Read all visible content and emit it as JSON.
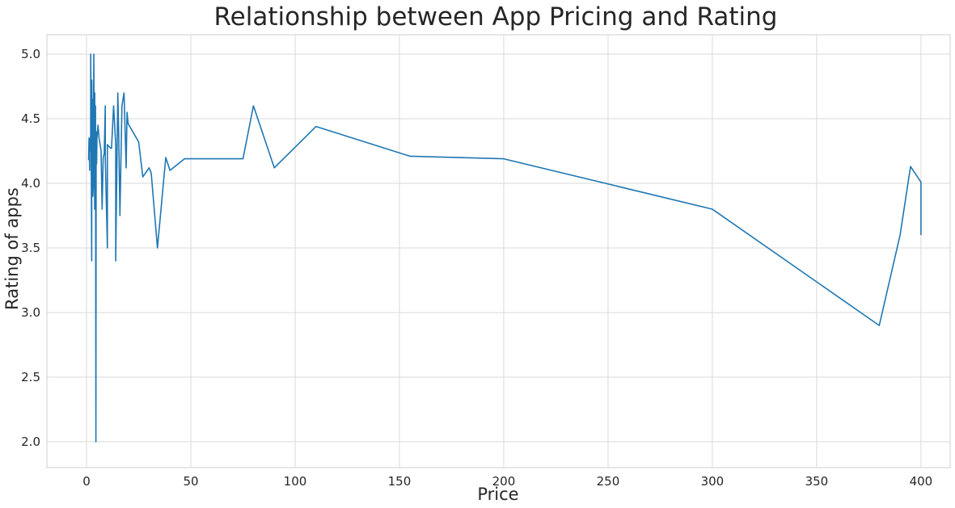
{
  "chart_data": {
    "type": "line",
    "title": "Relationship between App Pricing and Rating",
    "xlabel": "Price",
    "ylabel": "Rating of apps",
    "xlim": [
      -19,
      414
    ],
    "ylim": [
      1.8,
      5.15
    ],
    "xticks": [
      0,
      50,
      100,
      150,
      200,
      250,
      300,
      350,
      400
    ],
    "yticks": [
      2.0,
      2.5,
      3.0,
      3.5,
      4.0,
      4.5,
      5.0
    ],
    "xtick_labels": [
      "0",
      "50",
      "100",
      "150",
      "200",
      "250",
      "300",
      "350",
      "400"
    ],
    "ytick_labels": [
      "2.0",
      "2.5",
      "3.0",
      "3.5",
      "4.0",
      "4.5",
      "5.0"
    ],
    "grid": true,
    "colors": {
      "line": "#1f77b4",
      "grid": "#d9d9d9",
      "frame": "#cfcfcf"
    },
    "series": [
      {
        "x": [
          0.99,
          1.2,
          1.49,
          1.5,
          1.7,
          1.99,
          2.0,
          2.49,
          2.5,
          2.9,
          2.99,
          3.0,
          3.28,
          3.49,
          3.88,
          3.9,
          3.95,
          3.99,
          4.29,
          4.49,
          4.59,
          4.6,
          4.77,
          4.8,
          4.84,
          4.99,
          5.49,
          5.99,
          6.49,
          6.99,
          7.49,
          7.99,
          8.49,
          8.99,
          9.0,
          9.99,
          10.0,
          10.99,
          11.99,
          12.99,
          13.99,
          14.0,
          14.99,
          15.46,
          15.99,
          16.99,
          17.99,
          18.99,
          19.4,
          19.9,
          19.99,
          24.99,
          26.99,
          29.99,
          30.99,
          33.99,
          37.99,
          39.99,
          46.99,
          74.99,
          79.99,
          89.99,
          109.99,
          154.99,
          199.99,
          299.99,
          379.99,
          389.99,
          394.99,
          399.99,
          400.0
        ],
        "values": [
          4.18,
          4.35,
          4.1,
          4.35,
          4.25,
          4.28,
          5.0,
          3.4,
          4.8,
          4.2,
          4.65,
          3.9,
          4.0,
          5.0,
          3.9,
          3.8,
          4.7,
          4.3,
          4.6,
          2.0,
          4.2,
          4.4,
          4.3,
          4.2,
          4.15,
          4.35,
          4.45,
          4.35,
          4.3,
          4.25,
          3.8,
          4.2,
          4.23,
          4.6,
          4.2,
          3.5,
          4.3,
          4.28,
          4.27,
          4.6,
          4.3,
          3.4,
          4.7,
          4.35,
          3.75,
          4.6,
          4.7,
          4.12,
          4.55,
          4.47,
          4.46,
          4.32,
          4.05,
          4.12,
          4.08,
          3.5,
          4.2,
          4.1,
          4.19,
          4.19,
          4.6,
          4.12,
          4.44,
          4.21,
          4.19,
          3.8,
          2.9,
          3.6,
          4.13,
          4.01,
          3.6
        ]
      }
    ]
  }
}
